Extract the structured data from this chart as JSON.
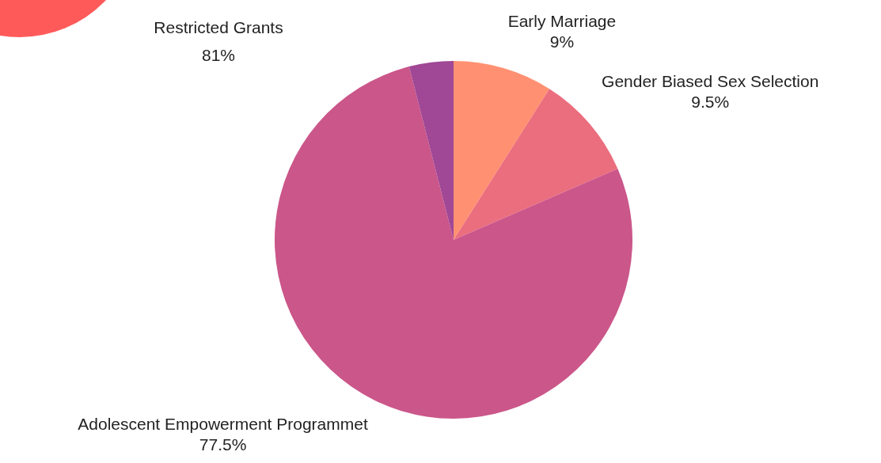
{
  "chart_data": {
    "type": "pie",
    "categories": [
      "Early Marriage",
      "Gender Biased Sex Selection",
      "Adolescent Empowerment Programmet",
      null
    ],
    "values": [
      9,
      9.5,
      77.5,
      4
    ],
    "value_labels": [
      "9%",
      "9.5%",
      "77.5%",
      null
    ],
    "colors": [
      "#ff9172",
      "#eb6e7e",
      "#cb568a",
      "#a04795"
    ],
    "annotations": [
      "Restricted Grants\n81%"
    ],
    "legend": false
  }
}
